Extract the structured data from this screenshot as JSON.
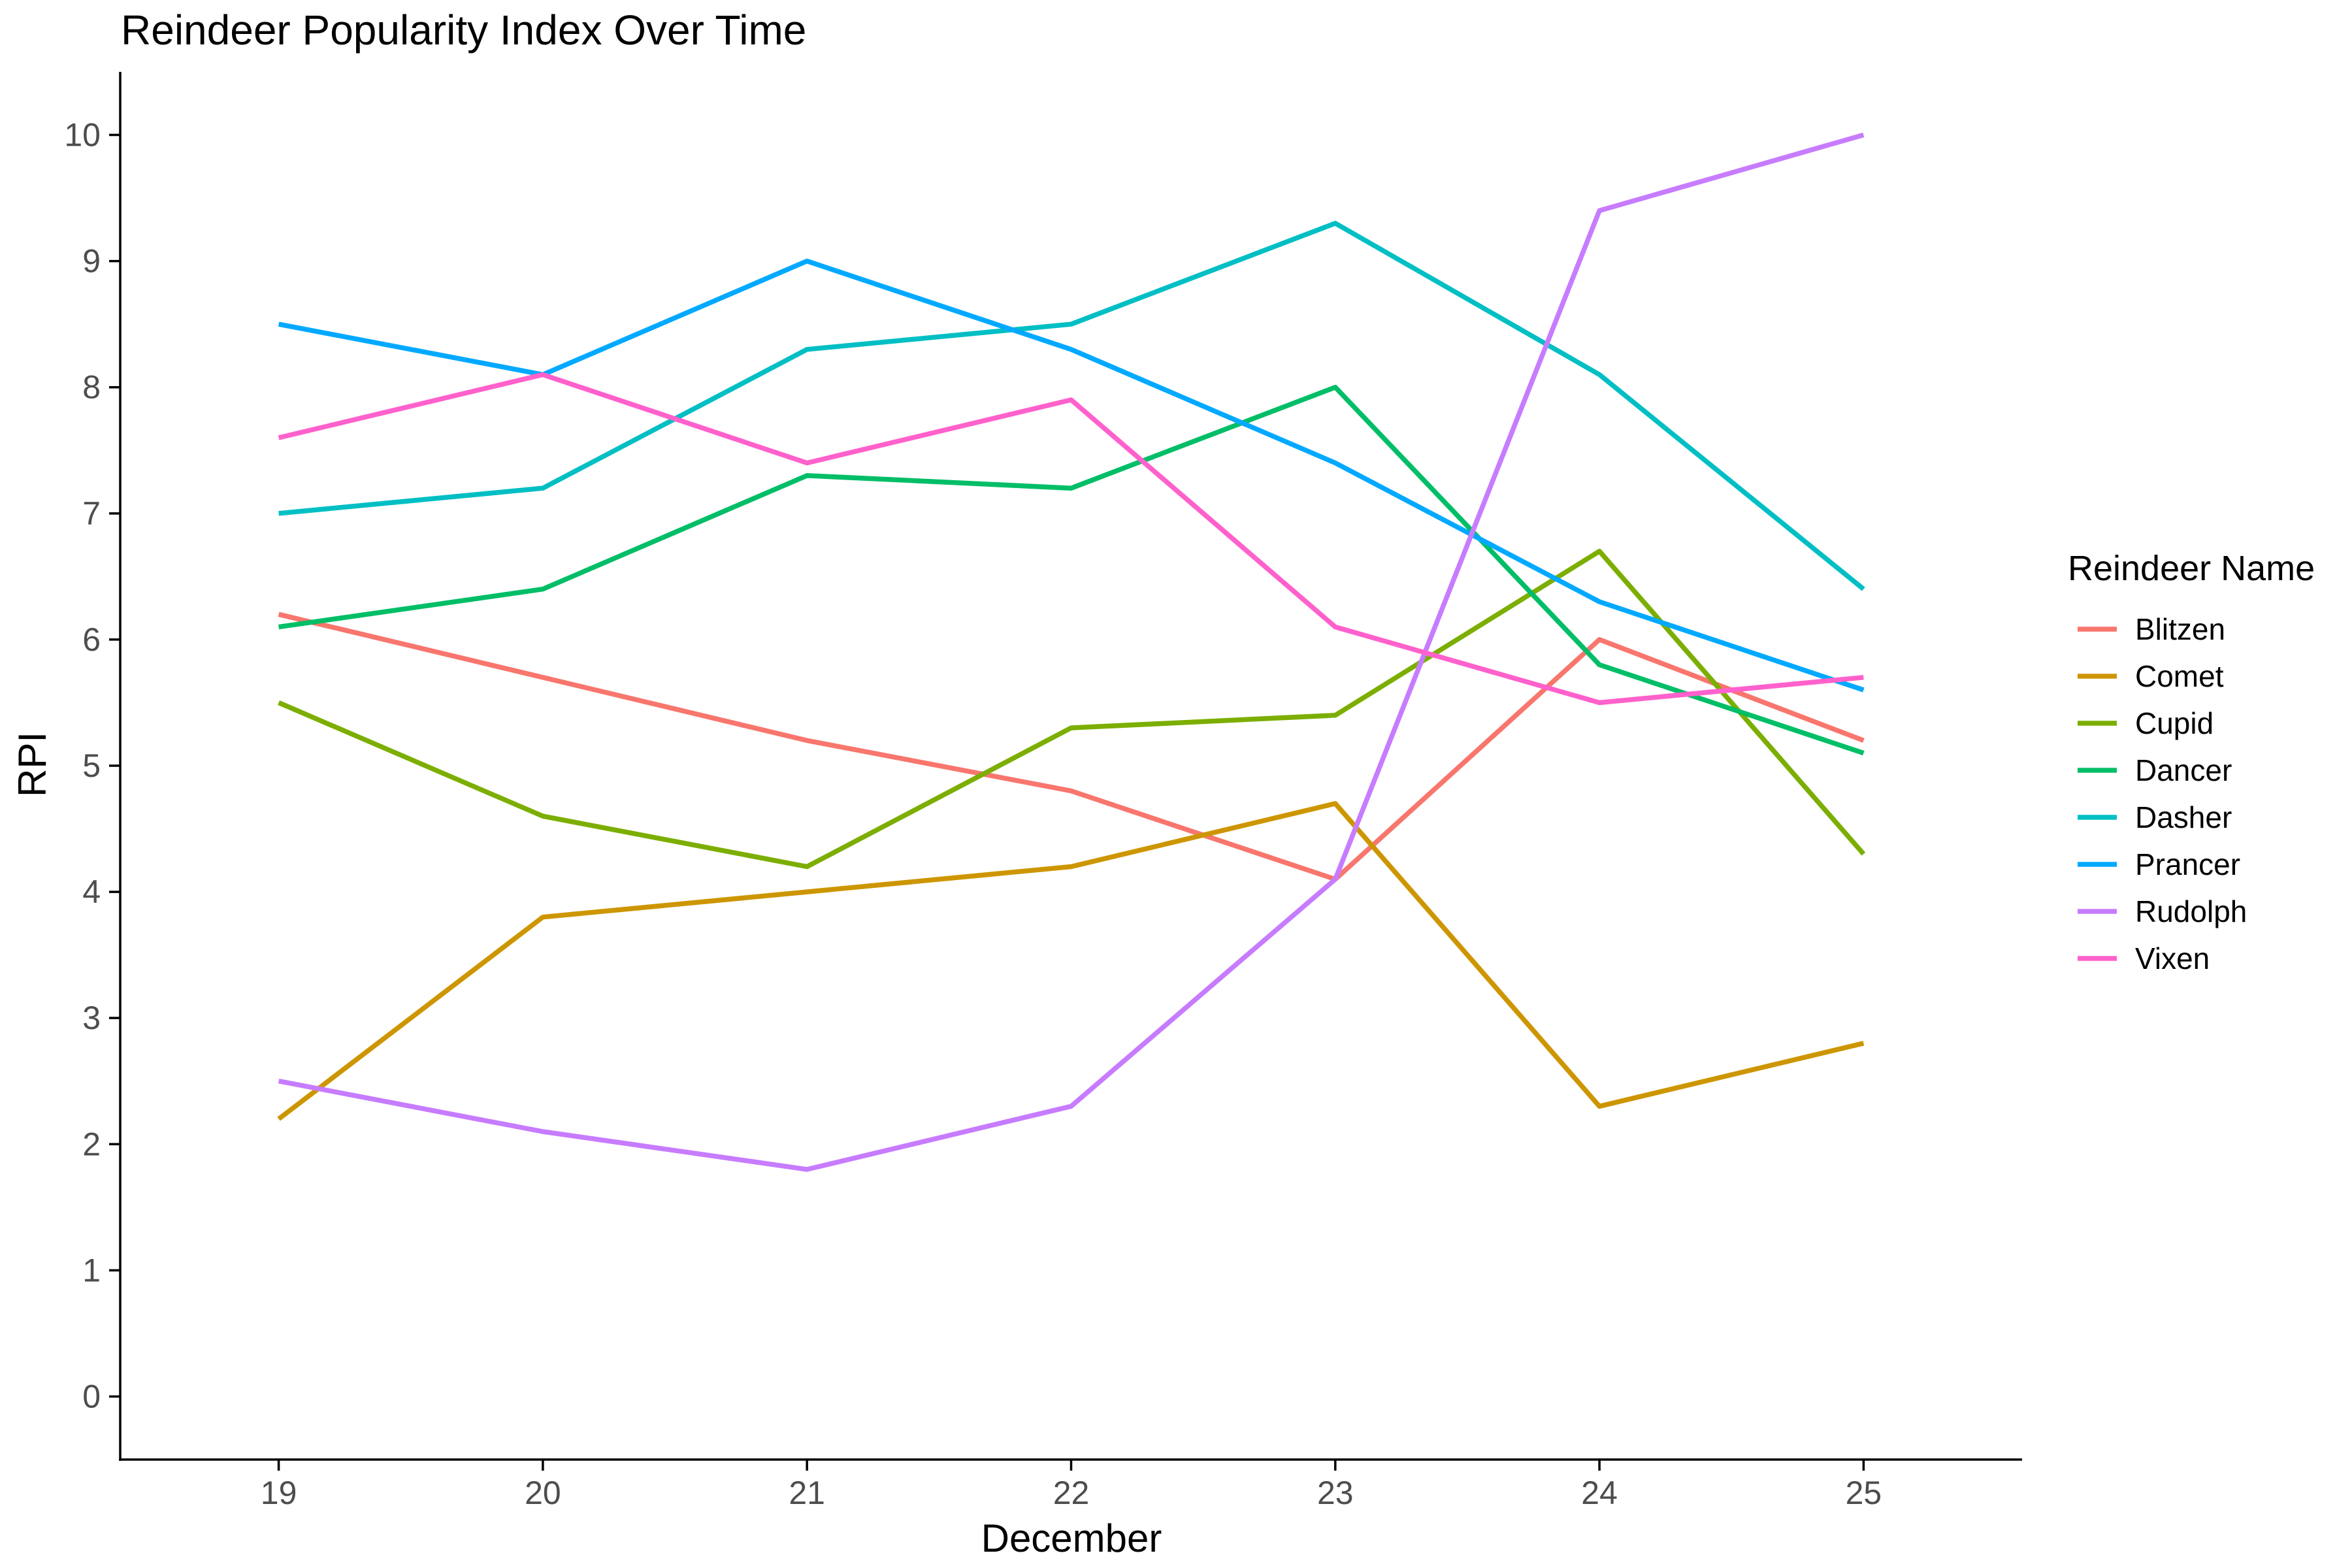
{
  "chart_data": {
    "type": "line",
    "title": "Reindeer Popularity Index Over Time",
    "xlabel": "December",
    "ylabel": "RPI",
    "x": [
      19,
      20,
      21,
      22,
      23,
      24,
      25
    ],
    "xlim": [
      18.4,
      25.6
    ],
    "ylim": [
      -0.5,
      10.5
    ],
    "yticks": [
      0,
      1,
      2,
      3,
      4,
      5,
      6,
      7,
      8,
      9,
      10
    ],
    "grid": false,
    "legend": {
      "title": "Reindeer Name",
      "position": "right"
    },
    "series": [
      {
        "name": "Blitzen",
        "color": "#F8766D",
        "values": [
          6.2,
          5.7,
          5.2,
          4.8,
          4.1,
          6.0,
          5.2
        ]
      },
      {
        "name": "Comet",
        "color": "#CD9600",
        "values": [
          2.2,
          3.8,
          4.0,
          4.2,
          4.7,
          2.3,
          2.8
        ]
      },
      {
        "name": "Cupid",
        "color": "#7CAE00",
        "values": [
          5.5,
          4.6,
          4.2,
          5.3,
          5.4,
          6.7,
          4.3
        ]
      },
      {
        "name": "Dancer",
        "color": "#00BE67",
        "values": [
          6.1,
          6.4,
          7.3,
          7.2,
          8.0,
          5.8,
          5.1
        ]
      },
      {
        "name": "Dasher",
        "color": "#00BFC4",
        "values": [
          7.0,
          7.2,
          8.3,
          8.5,
          9.3,
          8.1,
          6.4
        ]
      },
      {
        "name": "Prancer",
        "color": "#00A9FF",
        "values": [
          8.5,
          8.1,
          9.0,
          8.3,
          7.4,
          6.3,
          5.6
        ]
      },
      {
        "name": "Rudolph",
        "color": "#C77CFF",
        "values": [
          2.5,
          2.1,
          1.8,
          2.3,
          4.1,
          9.4,
          10.0
        ]
      },
      {
        "name": "Vixen",
        "color": "#FF61CC",
        "values": [
          7.6,
          8.1,
          7.4,
          7.9,
          6.1,
          5.5,
          5.7
        ]
      }
    ]
  }
}
